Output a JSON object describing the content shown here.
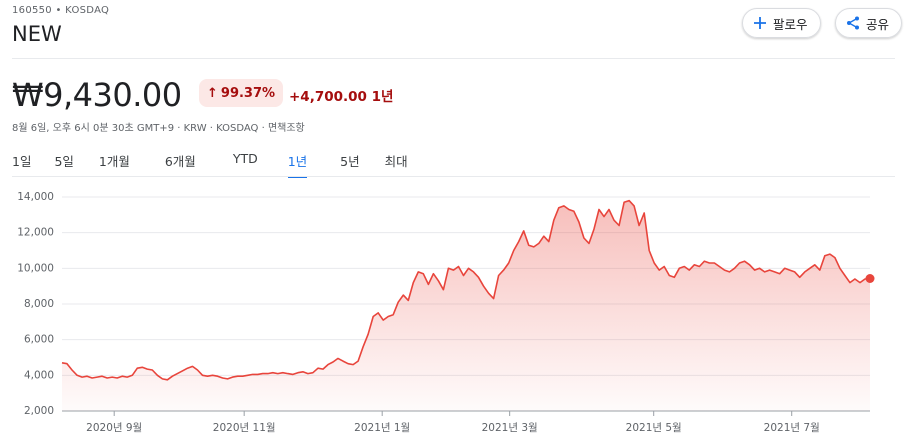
{
  "header": {
    "ticker": "160550 • KOSDAQ",
    "name": "NEW",
    "follow": "팔로우",
    "share": "공유",
    "price": "₩9,430.00",
    "change_pct": "99.37%",
    "change_abs": "+4,700.00",
    "change_period": "1년",
    "meta": "8월 6일, 오후 6시 0분 30초 GMT+9 · KRW · KOSDAQ · 면책조항",
    "ranges": [
      "1일",
      "5일",
      "1개월",
      "6개월",
      "YTD",
      "1년",
      "5년",
      "최대"
    ],
    "active_range": "1년"
  },
  "chart_data": {
    "type": "area",
    "color": "#e8453c",
    "grid": true,
    "values": [
      4700,
      4650,
      4300,
      4000,
      3900,
      3950,
      3850,
      3900,
      3950,
      3850,
      3900,
      3850,
      3950,
      3900,
      4000,
      4400,
      4450,
      4350,
      4300,
      4000,
      3800,
      3750,
      3950,
      4100,
      4250,
      4400,
      4500,
      4300,
      4000,
      3950,
      4000,
      3950,
      3850,
      3800,
      3900,
      3950,
      3950,
      4000,
      4050,
      4050,
      4100,
      4100,
      4150,
      4100,
      4150,
      4100,
      4050,
      4150,
      4200,
      4100,
      4150,
      4400,
      4350,
      4600,
      4750,
      4950,
      4800,
      4650,
      4600,
      4800,
      5600,
      6300,
      7300,
      7500,
      7100,
      7300,
      7400,
      8100,
      8500,
      8200,
      9200,
      9800,
      9700,
      9100,
      9700,
      9300,
      8800,
      10000,
      9900,
      10100,
      9600,
      10000,
      9800,
      9500,
      9000,
      8600,
      8300,
      9600,
      9900,
      10300,
      11000,
      11500,
      12100,
      11300,
      11200,
      11400,
      11800,
      11500,
      12700,
      13400,
      13500,
      13300,
      13200,
      12600,
      11700,
      11400,
      12200,
      13300,
      12900,
      13300,
      12700,
      12400,
      13700,
      13800,
      13500,
      12400,
      13100,
      11000,
      10300,
      9900,
      10100,
      9600,
      9500,
      10000,
      10100,
      9900,
      10200,
      10100,
      10400,
      10300,
      10300,
      10100,
      9900,
      9800,
      10000,
      10300,
      10400,
      10200,
      9900,
      10000,
      9800,
      9900,
      9800,
      9700,
      10000,
      9900,
      9800,
      9500,
      9800,
      10000,
      10200,
      9900,
      10700,
      10800,
      10600,
      10000,
      9600,
      9200,
      9400,
      9200,
      9400,
      9430
    ],
    "ylim": [
      2000,
      14000
    ],
    "yticks": [
      {
        "value": 2000,
        "label": "2,000"
      },
      {
        "value": 4000,
        "label": "4,000"
      },
      {
        "value": 6000,
        "label": "6,000"
      },
      {
        "value": 8000,
        "label": "8,000"
      },
      {
        "value": 10000,
        "label": "10,000"
      },
      {
        "value": 12000,
        "label": "12,000"
      },
      {
        "value": 14000,
        "label": "14,000"
      }
    ],
    "xticks": [
      {
        "value": 10.4,
        "label": "2020년 9월"
      },
      {
        "value": 36.3,
        "label": "2020년 11월"
      },
      {
        "value": 63.8,
        "label": "2021년 1월"
      },
      {
        "value": 89.2,
        "label": "2021년 3월"
      },
      {
        "value": 117.9,
        "label": "2021년 5월"
      },
      {
        "value": 145.4,
        "label": "2021년 7월"
      }
    ]
  }
}
